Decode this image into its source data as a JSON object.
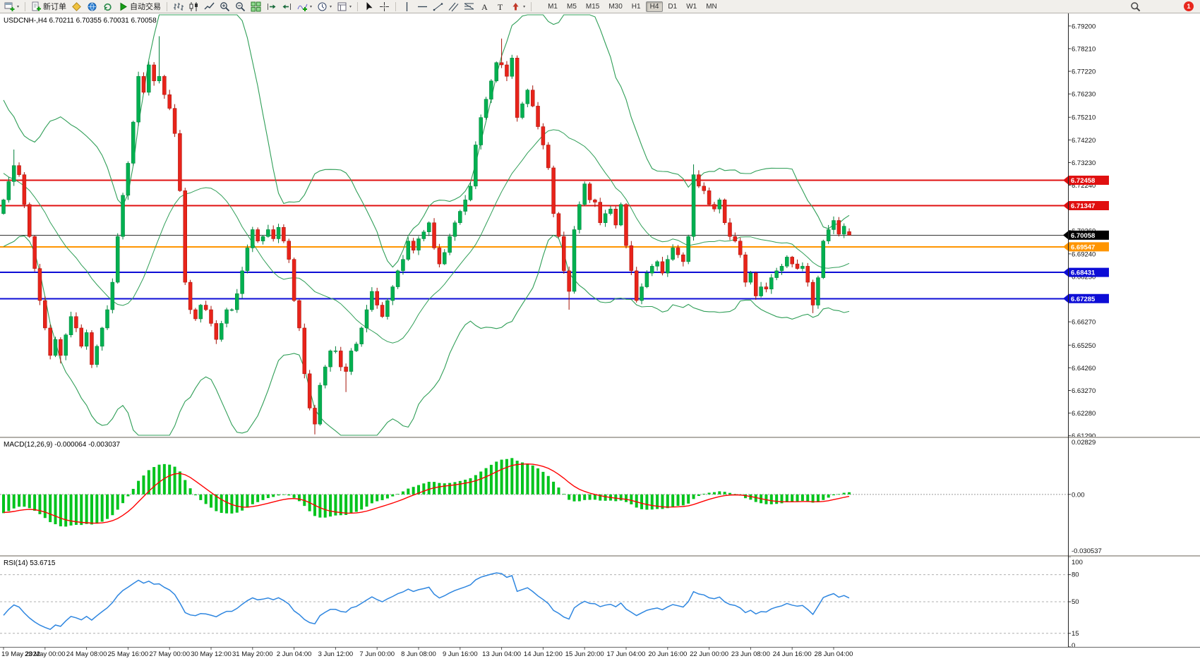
{
  "toolbar": {
    "badge": "1",
    "groups": [
      {
        "name": "new-chart",
        "icon": "window-plus",
        "caret": true
      },
      {
        "sep": true
      },
      {
        "name": "new-order",
        "icon": "doc-plus",
        "label": "新订单"
      },
      {
        "name": "metaeditor",
        "icon": "diamond-yellow"
      },
      {
        "name": "community",
        "icon": "globe-blue"
      },
      {
        "name": "refresh",
        "icon": "refresh"
      },
      {
        "name": "autotrading",
        "icon": "play-green",
        "label": "自动交易"
      },
      {
        "sep": true
      },
      {
        "name": "bar-chart",
        "icon": "bars"
      },
      {
        "name": "candle-chart",
        "icon": "candles"
      },
      {
        "name": "line-chart",
        "icon": "line"
      },
      {
        "name": "zoom-in",
        "icon": "zoom-in"
      },
      {
        "name": "zoom-out",
        "icon": "zoom-out"
      },
      {
        "name": "tile-windows",
        "icon": "tiles"
      },
      {
        "name": "auto-scroll",
        "icon": "autoscroll"
      },
      {
        "name": "chart-shift",
        "icon": "shift"
      },
      {
        "name": "indicators",
        "icon": "indicator-plus",
        "caret": true
      },
      {
        "name": "periods",
        "icon": "clock",
        "caret": true
      },
      {
        "name": "templates",
        "icon": "template",
        "caret": true
      },
      {
        "sep": true
      },
      {
        "name": "cursor",
        "icon": "cursor"
      },
      {
        "name": "crosshair",
        "icon": "crosshair"
      },
      {
        "sep": true
      },
      {
        "name": "vertical-line",
        "icon": "vline"
      },
      {
        "name": "horizontal-line",
        "icon": "hline"
      },
      {
        "name": "trendline",
        "icon": "trendline"
      },
      {
        "name": "equidistant-channel",
        "icon": "channel"
      },
      {
        "name": "fibonacci",
        "icon": "fibo"
      },
      {
        "name": "text",
        "icon": "text-a"
      },
      {
        "name": "text-label",
        "icon": "text-t"
      },
      {
        "name": "arrows",
        "icon": "arrow-marker",
        "caret": true
      },
      {
        "sep": true
      }
    ],
    "timeframes": [
      {
        "label": "M1"
      },
      {
        "label": "M5"
      },
      {
        "label": "M15"
      },
      {
        "label": "M30"
      },
      {
        "label": "H1"
      },
      {
        "label": "H4",
        "active": true
      },
      {
        "label": "D1"
      },
      {
        "label": "W1"
      },
      {
        "label": "MN"
      }
    ]
  },
  "chart": {
    "title": "USDCNH-,H4 6.70211 6.70355 6.70031 6.70058"
  },
  "chart_data": {
    "type": "candlestick",
    "symbol": "USDCNH-",
    "timeframe": "H4",
    "title": "USDCNH- H4 with Bollinger Bands, MACD(12,26,9), RSI(14)",
    "grid": false,
    "colors": {
      "up": "#00b050",
      "up_dark": "#00803a",
      "down": "#e8231a",
      "down_dark": "#a51208"
    },
    "bollinger": {
      "period": 20,
      "deviation": 2,
      "color": "#2f9e57"
    },
    "price_axis": {
      "min": 6.6125,
      "max": 6.7975,
      "ticks": [
        6.792,
        6.7821,
        6.7722,
        6.7623,
        6.7521,
        6.7422,
        6.7323,
        6.7224,
        6.7125,
        6.7026,
        6.6924,
        6.6825,
        6.6726,
        6.6627,
        6.6525,
        6.6426,
        6.6327,
        6.6228,
        6.6129
      ]
    },
    "h_lines": [
      {
        "price": 6.72458,
        "label": "6.72458",
        "color": "#e01010",
        "width": 1.6
      },
      {
        "price": 6.71347,
        "label": "6.71347",
        "color": "#e01010",
        "width": 1.6
      },
      {
        "price": 6.69547,
        "label": "6.69547",
        "color": "#ff9500",
        "width": 2
      },
      {
        "price": 6.68431,
        "label": "6.68431",
        "color": "#0d0dd6",
        "width": 2
      },
      {
        "price": 6.67285,
        "label": "6.67285",
        "color": "#0d0dd6",
        "width": 2
      }
    ],
    "bid": {
      "price": 6.70058,
      "label": "6.70058",
      "color": "#000000"
    },
    "last_candle": {
      "o": 6.70211,
      "h": 6.70355,
      "l": 6.70031,
      "c": 6.70058
    },
    "preroll_closes": [
      6.768,
      6.772,
      6.765,
      6.76,
      6.764,
      6.756,
      6.75,
      6.754,
      6.746,
      6.74,
      6.744,
      6.736,
      6.73,
      6.734,
      6.726,
      6.72,
      6.724,
      6.716,
      6.71,
      6.714,
      6.708,
      6.712,
      6.706,
      6.71
    ],
    "closes": [
      6.716,
      6.724,
      6.731,
      6.727,
      6.714,
      6.7,
      6.686,
      6.672,
      6.66,
      6.648,
      6.655,
      6.648,
      6.657,
      6.665,
      6.66,
      6.652,
      6.658,
      6.644,
      6.652,
      6.66,
      6.668,
      6.68,
      6.7,
      6.718,
      6.732,
      6.75,
      6.77,
      6.763,
      6.775,
      6.768,
      6.77,
      6.762,
      6.756,
      6.745,
      6.72,
      6.68,
      6.668,
      6.664,
      6.67,
      6.668,
      6.662,
      6.655,
      6.662,
      6.668,
      6.668,
      6.675,
      6.685,
      6.695,
      6.703,
      6.698,
      6.7,
      6.703,
      6.699,
      6.704,
      6.698,
      6.69,
      6.672,
      6.66,
      6.64,
      6.625,
      6.618,
      6.635,
      6.643,
      6.65,
      6.65,
      6.643,
      6.641,
      6.65,
      6.653,
      6.66,
      6.668,
      6.676,
      6.67,
      6.665,
      6.672,
      6.678,
      6.685,
      6.69,
      6.698,
      6.694,
      6.699,
      6.702,
      6.706,
      6.695,
      6.688,
      6.693,
      6.7,
      6.706,
      6.711,
      6.716,
      6.722,
      6.74,
      6.752,
      6.76,
      6.768,
      6.776,
      6.775,
      6.77,
      6.778,
      6.752,
      6.758,
      6.764,
      6.757,
      6.748,
      6.74,
      6.73,
      6.71,
      6.7,
      6.685,
      6.676,
      6.703,
      6.714,
      6.723,
      6.716,
      6.715,
      6.706,
      6.71,
      6.712,
      6.705,
      6.714,
      6.696,
      6.685,
      6.672,
      6.678,
      6.684,
      6.687,
      6.689,
      6.684,
      6.69,
      6.695,
      6.692,
      6.689,
      6.7,
      6.727,
      6.722,
      6.72,
      6.714,
      6.712,
      6.716,
      6.706,
      6.7,
      6.698,
      6.692,
      6.68,
      6.684,
      6.674,
      6.678,
      6.677,
      6.682,
      6.685,
      6.687,
      6.691,
      6.688,
      6.686,
      6.687,
      6.68,
      6.67,
      6.682,
      6.698,
      6.703,
      6.707,
      6.701,
      6.7045,
      6.70058
    ],
    "wick_overrides": {
      "2": {
        "h": 6.738
      },
      "11": {
        "l": 6.6445
      },
      "17": {
        "l": 6.6425
      },
      "30": {
        "h": 6.7875
      },
      "60": {
        "l": 6.6135
      },
      "66": {
        "l": 6.632
      },
      "96": {
        "h": 6.7865
      },
      "109": {
        "l": 6.668
      },
      "133": {
        "h": 6.7315
      },
      "156": {
        "l": 6.6665
      }
    },
    "time_labels": [
      "19 May 2022",
      "23 May 00:00",
      "24 May 08:00",
      "25 May 16:00",
      "27 May 00:00",
      "30 May 12:00",
      "31 May 20:00",
      "2 Jun 04:00",
      "3 Jun 12:00",
      "7 Jun 00:00",
      "8 Jun 08:00",
      "9 Jun 16:00",
      "13 Jun 04:00",
      "14 Jun 12:00",
      "15 Jun 20:00",
      "17 Jun 04:00",
      "20 Jun 16:00",
      "22 Jun 00:00",
      "23 Jun 08:00",
      "24 Jun 16:00",
      "28 Jun 04:00"
    ],
    "indicators": {
      "macd": {
        "label_full": "MACD(12,26,9) -0.000064 -0.003037",
        "fast": 12,
        "slow": 26,
        "signal": 9,
        "value_main": -6.4e-05,
        "value_signal": -0.003037,
        "scale_max": 0.02829,
        "scale_min": -0.030537,
        "axis_labels": [
          "0.02829",
          "0.00",
          "-0.030537"
        ],
        "hist_color": "#00c41d",
        "signal_color": "#ff0000"
      },
      "rsi": {
        "label_full": "RSI(14) 53.6715",
        "period": 14,
        "value": 53.6715,
        "range": [
          0,
          100
        ],
        "axis_labels": [
          {
            "v": 100,
            "label": "100"
          },
          {
            "v": 80,
            "label": "80"
          },
          {
            "v": 50,
            "label": "50"
          },
          {
            "v": 15,
            "label": "15"
          },
          {
            "v": 0,
            "label": "0"
          }
        ],
        "dashed_levels": [
          80,
          50,
          15
        ],
        "color": "#2e86e0"
      }
    }
  }
}
